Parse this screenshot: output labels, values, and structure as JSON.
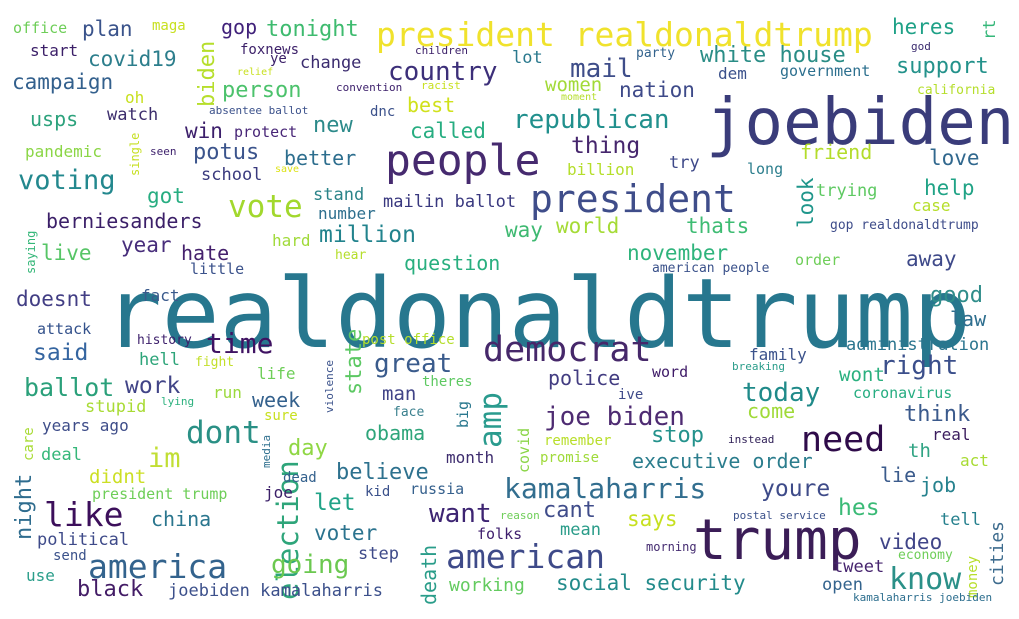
{
  "words": [
    {
      "text": "realdonaldtrump",
      "color": "#27778e"
    },
    {
      "text": "joebiden",
      "color": "#3a3c7a"
    },
    {
      "text": "trump",
      "color": "#3b1d57"
    },
    {
      "text": "people",
      "color": "#462a6f"
    },
    {
      "text": "president",
      "color": "#3f4d8a"
    },
    {
      "text": "democrat",
      "color": "#46286a"
    },
    {
      "text": "president realdonaldtrump",
      "color": "#f0e22c"
    },
    {
      "text": "american",
      "color": "#3e4a89"
    },
    {
      "text": "kamalaharris",
      "color": "#326e8f"
    },
    {
      "text": "america",
      "color": "#33638d"
    },
    {
      "text": "need",
      "color": "#2f0b4a"
    },
    {
      "text": "vote",
      "color": "#a2d82d"
    },
    {
      "text": "election",
      "color": "#2ea57a"
    },
    {
      "text": "amp",
      "color": "#2a9b8e"
    },
    {
      "text": "like",
      "color": "#3c0f5b"
    },
    {
      "text": "know",
      "color": "#2b9088"
    },
    {
      "text": "voting",
      "color": "#23888e"
    },
    {
      "text": "dont",
      "color": "#2a9085"
    },
    {
      "text": "time",
      "color": "#3f1262"
    },
    {
      "text": "country",
      "color": "#3c2f79"
    },
    {
      "text": "joe biden",
      "color": "#4e2b72"
    },
    {
      "text": "great",
      "color": "#3a5b8c"
    },
    {
      "text": "republican",
      "color": "#21908d"
    },
    {
      "text": "mail",
      "color": "#3e4d89"
    },
    {
      "text": "today",
      "color": "#1f8a89"
    },
    {
      "text": "want",
      "color": "#3d2472"
    },
    {
      "text": "going",
      "color": "#6bc850"
    },
    {
      "text": "right",
      "color": "#3b4f8b"
    },
    {
      "text": "million",
      "color": "#22838d"
    },
    {
      "text": "white house",
      "color": "#2a8d86"
    },
    {
      "text": "support",
      "color": "#24928b"
    },
    {
      "text": "thing",
      "color": "#46266d"
    },
    {
      "text": "work",
      "color": "#414487"
    },
    {
      "text": "youre",
      "color": "#3e4b89"
    },
    {
      "text": "social security",
      "color": "#238b8b"
    },
    {
      "text": "ballot",
      "color": "#2aa07a"
    },
    {
      "text": "said",
      "color": "#3565a0"
    },
    {
      "text": "tonight",
      "color": "#3ebb6f"
    },
    {
      "text": "campaign",
      "color": "#33608d"
    },
    {
      "text": "covid19",
      "color": "#2c7e8c"
    },
    {
      "text": "person",
      "color": "#4cc26c"
    },
    {
      "text": "potus",
      "color": "#3b548c"
    },
    {
      "text": "year",
      "color": "#472d7b"
    },
    {
      "text": "thats",
      "color": "#3ebc73"
    },
    {
      "text": "state",
      "color": "#5cc863"
    },
    {
      "text": "im",
      "color": "#c1de34"
    },
    {
      "text": "think",
      "color": "#3b5a8c"
    },
    {
      "text": "good",
      "color": "#2f8d8a"
    },
    {
      "text": "black",
      "color": "#431c66"
    },
    {
      "text": "day",
      "color": "#8fd744"
    },
    {
      "text": "let",
      "color": "#20a387"
    },
    {
      "text": "believe",
      "color": "#2d718e"
    },
    {
      "text": "china",
      "color": "#2a768e"
    },
    {
      "text": "stop",
      "color": "#24928c"
    },
    {
      "text": "executive order",
      "color": "#2b7d8d"
    },
    {
      "text": "hes",
      "color": "#3aba76"
    },
    {
      "text": "cant",
      "color": "#3f4c8a"
    },
    {
      "text": "voter",
      "color": "#2b738e"
    },
    {
      "text": "says",
      "color": "#c7e020"
    },
    {
      "text": "video",
      "color": "#404588"
    },
    {
      "text": "november",
      "color": "#2fb47c"
    },
    {
      "text": "question",
      "color": "#29af7f"
    },
    {
      "text": "world",
      "color": "#a5db36"
    },
    {
      "text": "way",
      "color": "#3eb971"
    },
    {
      "text": "new",
      "color": "#2c8a8a"
    },
    {
      "text": "called",
      "color": "#27ad81"
    },
    {
      "text": "best",
      "color": "#d0e11c"
    },
    {
      "text": "nation",
      "color": "#3e4a89"
    },
    {
      "text": "women",
      "color": "#a2da37"
    },
    {
      "text": "plan",
      "color": "#3a538b"
    },
    {
      "text": "gop",
      "color": "#40217a"
    },
    {
      "text": "heres",
      "color": "#1fa187"
    },
    {
      "text": "change",
      "color": "#3b2c6f"
    },
    {
      "text": "lot",
      "color": "#2a798e"
    },
    {
      "text": "usps",
      "color": "#2ca27c"
    },
    {
      "text": "watch",
      "color": "#3d2e6d"
    },
    {
      "text": "win",
      "color": "#3c1f6b"
    },
    {
      "text": "protect",
      "color": "#482677"
    },
    {
      "text": "better",
      "color": "#2d6e8e"
    },
    {
      "text": "friend",
      "color": "#b3dc2b"
    },
    {
      "text": "love",
      "color": "#31688e"
    },
    {
      "text": "help",
      "color": "#20a386"
    },
    {
      "text": "got",
      "color": "#27ad81"
    },
    {
      "text": "school",
      "color": "#3a3a7e"
    },
    {
      "text": "hate",
      "color": "#45216d"
    },
    {
      "text": "live",
      "color": "#56c566"
    },
    {
      "text": "berniesanders",
      "color": "#3b1f68"
    },
    {
      "text": "doesnt",
      "color": "#423e84"
    },
    {
      "text": "fact",
      "color": "#3a5a8c"
    },
    {
      "text": "little",
      "color": "#3b528b"
    },
    {
      "text": "hard",
      "color": "#a0da39"
    },
    {
      "text": "mailin ballot",
      "color": "#39387f"
    },
    {
      "text": "stand",
      "color": "#2b8489"
    },
    {
      "text": "number",
      "color": "#2e6f8e"
    },
    {
      "text": "look",
      "color": "#1f968b"
    },
    {
      "text": "trying",
      "color": "#5ec962"
    },
    {
      "text": "case",
      "color": "#b5de2b"
    },
    {
      "text": "gop realdonaldtrump",
      "color": "#3e4c8a"
    },
    {
      "text": "away",
      "color": "#3e4989"
    },
    {
      "text": "law",
      "color": "#2e6e8e"
    },
    {
      "text": "american people",
      "color": "#3b528b"
    },
    {
      "text": "order",
      "color": "#6ece58"
    },
    {
      "text": "administration",
      "color": "#2b758e"
    },
    {
      "text": "family",
      "color": "#3b528b"
    },
    {
      "text": "wont",
      "color": "#2ab07f"
    },
    {
      "text": "coronavirus",
      "color": "#26ad81"
    },
    {
      "text": "come",
      "color": "#a0da39"
    },
    {
      "text": "man",
      "color": "#414487"
    },
    {
      "text": "obama",
      "color": "#2ea57a"
    },
    {
      "text": "police",
      "color": "#423c81"
    },
    {
      "text": "week",
      "color": "#34618d"
    },
    {
      "text": "life",
      "color": "#6ece58"
    },
    {
      "text": "run",
      "color": "#9bd93c"
    },
    {
      "text": "sure",
      "color": "#c8e020"
    },
    {
      "text": "face",
      "color": "#3a808e"
    },
    {
      "text": "big",
      "color": "#2a788e"
    },
    {
      "text": "ive",
      "color": "#3e4a89"
    },
    {
      "text": "theres",
      "color": "#5ec962"
    },
    {
      "text": "word",
      "color": "#3e1a67"
    },
    {
      "text": "breaking",
      "color": "#2a9d8a"
    },
    {
      "text": "real",
      "color": "#3b1d5e"
    },
    {
      "text": "instead",
      "color": "#2d1d55"
    },
    {
      "text": "th",
      "color": "#31a484"
    },
    {
      "text": "act",
      "color": "#a8db34"
    },
    {
      "text": "lie",
      "color": "#3b5b8c"
    },
    {
      "text": "job",
      "color": "#26828e"
    },
    {
      "text": "tell",
      "color": "#27818e"
    },
    {
      "text": "cities",
      "color": "#3e6c8e"
    },
    {
      "text": "money",
      "color": "#b7de2a"
    },
    {
      "text": "economy",
      "color": "#6ece58"
    },
    {
      "text": "tweet",
      "color": "#46246e"
    },
    {
      "text": "open",
      "color": "#33638d"
    },
    {
      "text": "morning",
      "color": "#442b70"
    },
    {
      "text": "kamalaharris joebiden",
      "color": "#2c6e8e"
    },
    {
      "text": "postal service",
      "color": "#3b518b"
    },
    {
      "text": "mean",
      "color": "#2a9c89"
    },
    {
      "text": "folks",
      "color": "#3f1f6d"
    },
    {
      "text": "reason",
      "color": "#6ece58"
    },
    {
      "text": "working",
      "color": "#63cb5f"
    },
    {
      "text": "death",
      "color": "#2a9d8a"
    },
    {
      "text": "step",
      "color": "#3e4a89"
    },
    {
      "text": "russia",
      "color": "#35608d"
    },
    {
      "text": "kid",
      "color": "#3b518b"
    },
    {
      "text": "covid",
      "color": "#8ad547"
    },
    {
      "text": "month",
      "color": "#3d2c6e"
    },
    {
      "text": "remember",
      "color": "#b8de29"
    },
    {
      "text": "promise",
      "color": "#9fda3a"
    },
    {
      "text": "dead",
      "color": "#34618d"
    },
    {
      "text": "joe",
      "color": "#3b1f68"
    },
    {
      "text": "president trump",
      "color": "#6ece58"
    },
    {
      "text": "didnt",
      "color": "#ccdf24"
    },
    {
      "text": "night",
      "color": "#2e6c8e"
    },
    {
      "text": "political",
      "color": "#3e4a89"
    },
    {
      "text": "send",
      "color": "#3b528b"
    },
    {
      "text": "use",
      "color": "#2a9e8a"
    },
    {
      "text": "joebiden kamalaharris",
      "color": "#3c508b"
    },
    {
      "text": "deal",
      "color": "#35b779"
    },
    {
      "text": "years ago",
      "color": "#3e4d89"
    },
    {
      "text": "care",
      "color": "#a8db34"
    },
    {
      "text": "stupid",
      "color": "#a8db34"
    },
    {
      "text": "lying",
      "color": "#2cb17e"
    },
    {
      "text": "media",
      "color": "#2e6f8e"
    },
    {
      "text": "violence",
      "color": "#3b528b"
    },
    {
      "text": "hell",
      "color": "#2ea57a"
    },
    {
      "text": "fight",
      "color": "#c3df2a"
    },
    {
      "text": "history",
      "color": "#3c1f6b"
    },
    {
      "text": "attack",
      "color": "#33518b"
    },
    {
      "text": "post office",
      "color": "#b5de2b"
    },
    {
      "text": "hear",
      "color": "#b5de2b"
    },
    {
      "text": "saying",
      "color": "#35b779"
    },
    {
      "text": "single",
      "color": "#c6df21"
    },
    {
      "text": "seen",
      "color": "#3c1f6b"
    },
    {
      "text": "save",
      "color": "#dde318"
    },
    {
      "text": "pandemic",
      "color": "#8bd646"
    },
    {
      "text": "billion",
      "color": "#b5de2b"
    },
    {
      "text": "long",
      "color": "#2c7e8d"
    },
    {
      "text": "try",
      "color": "#3e4989"
    },
    {
      "text": "biden",
      "color": "#b6de2b"
    },
    {
      "text": "oh",
      "color": "#c8e020"
    },
    {
      "text": "absentee ballot",
      "color": "#3b518b"
    },
    {
      "text": "dnc",
      "color": "#3b518b"
    },
    {
      "text": "relief",
      "color": "#c8e020"
    },
    {
      "text": "convention",
      "color": "#3c1f6b"
    },
    {
      "text": "racist",
      "color": "#c8e020"
    },
    {
      "text": "moment",
      "color": "#b5de2b"
    },
    {
      "text": "dem",
      "color": "#3b518b"
    },
    {
      "text": "government",
      "color": "#2c6f8e"
    },
    {
      "text": "california",
      "color": "#b5de2b"
    },
    {
      "text": "party",
      "color": "#33638d"
    },
    {
      "text": "rt",
      "color": "#35b779"
    },
    {
      "text": "god",
      "color": "#3b2c6f"
    },
    {
      "text": "office",
      "color": "#6ece58"
    },
    {
      "text": "maga",
      "color": "#c8e020"
    },
    {
      "text": "start",
      "color": "#3b1f68"
    },
    {
      "text": "foxnews",
      "color": "#3b1f68"
    },
    {
      "text": "ye",
      "color": "#3b1f68"
    },
    {
      "text": "children",
      "color": "#3b1f68"
    }
  ]
}
